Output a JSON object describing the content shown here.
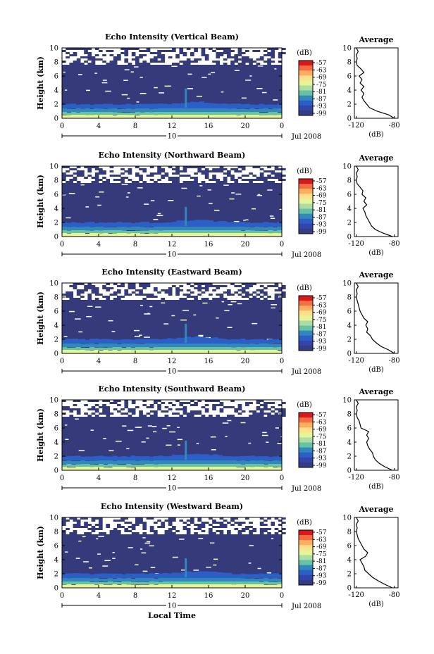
{
  "colorbar": {
    "unit": "(dB)",
    "labels": [
      "-57",
      "-63",
      "-69",
      "-75",
      "-81",
      "-87",
      "-93",
      "-99"
    ],
    "colors": [
      "#d7191c",
      "#f46d43",
      "#fdae61",
      "#fee08b",
      "#e6f598",
      "#abdda4",
      "#66c2a5",
      "#3288bd",
      "#2b5fc6",
      "#3344aa",
      "#343c83"
    ]
  },
  "shared": {
    "ylabel": "Height (km)",
    "x_ticks": [
      "0",
      "4",
      "8",
      "12",
      "16",
      "20",
      "0"
    ],
    "date_marker": "10",
    "date_label": "Jul 2008",
    "xlabel": "Local Time",
    "yticks": [
      "0",
      "2",
      "4",
      "6",
      "8",
      "10"
    ],
    "avg_title": "Average",
    "avg_xlabel": "(dB)",
    "avg_xticks": [
      "-120",
      "-80"
    ],
    "background_color": "#343a7a"
  },
  "chart_data": [
    {
      "type": "heatmap",
      "title": "Echo Intensity (Vertical Beam)",
      "ylabel": "Height (km)",
      "xlim": [
        0,
        24
      ],
      "ylim": [
        0,
        10
      ],
      "avg_profile": {
        "heights": [
          0,
          0.5,
          1,
          1.5,
          2,
          2.5,
          3,
          3.5,
          4,
          4.5,
          5,
          5.5,
          6,
          6.5,
          7,
          7.5,
          8,
          8.5,
          9,
          9.5,
          10
        ],
        "db": [
          -80,
          -86,
          -98,
          -106,
          -109,
          -112,
          -114,
          -112,
          -115,
          -112,
          -116,
          -114,
          -117,
          -112,
          -115,
          -119,
          -120,
          -119,
          -120,
          -118,
          -120
        ]
      }
    },
    {
      "type": "heatmap",
      "title": "Echo Intensity (Northward Beam)",
      "ylabel": "Height (km)",
      "xlim": [
        0,
        24
      ],
      "ylim": [
        0,
        10
      ],
      "avg_profile": {
        "heights": [
          0,
          0.5,
          1,
          1.5,
          2,
          2.5,
          3,
          3.5,
          4,
          4.5,
          5,
          5.5,
          6,
          6.5,
          7,
          7.5,
          8,
          8.5,
          9,
          9.5,
          10
        ],
        "db": [
          -82,
          -92,
          -100,
          -104,
          -106,
          -108,
          -110,
          -111,
          -113,
          -109,
          -112,
          -110,
          -114,
          -113,
          -116,
          -119,
          -120,
          -119,
          -120,
          -118,
          -120
        ]
      }
    },
    {
      "type": "heatmap",
      "title": "Echo Intensity (Eastward Beam)",
      "ylabel": "Height (km)",
      "xlim": [
        0,
        24
      ],
      "ylim": [
        0,
        10
      ],
      "avg_profile": {
        "heights": [
          0,
          0.5,
          1,
          1.5,
          2,
          2.5,
          3,
          3.5,
          4,
          4.5,
          5,
          5.5,
          6,
          6.5,
          7,
          7.5,
          8,
          8.5,
          9,
          9.5,
          10
        ],
        "db": [
          -80,
          -86,
          -94,
          -99,
          -103,
          -105,
          -109,
          -108,
          -110,
          -108,
          -112,
          -114,
          -116,
          -117,
          -118,
          -119,
          -120,
          -119,
          -120,
          -118,
          -120
        ]
      }
    },
    {
      "type": "heatmap",
      "title": "Echo Intensity (Southward Beam)",
      "ylabel": "Height (km)",
      "xlim": [
        0,
        24
      ],
      "ylim": [
        0,
        10
      ],
      "avg_profile": {
        "heights": [
          0,
          0.5,
          1,
          1.5,
          2,
          2.5,
          3,
          3.5,
          4,
          4.5,
          5,
          5.5,
          6,
          6.5,
          7,
          7.5,
          8,
          8.5,
          9,
          9.5,
          10
        ],
        "db": [
          -82,
          -90,
          -96,
          -100,
          -102,
          -103,
          -106,
          -108,
          -109,
          -107,
          -109,
          -107,
          -115,
          -116,
          -117,
          -119,
          -120,
          -119,
          -120,
          -118,
          -120
        ]
      }
    },
    {
      "type": "heatmap",
      "title": "Echo Intensity (Westward Beam)",
      "ylabel": "Height (km)",
      "xlim": [
        0,
        24
      ],
      "ylim": [
        0,
        10
      ],
      "avg_profile": {
        "heights": [
          0,
          0.5,
          1,
          1.5,
          2,
          2.5,
          3,
          3.5,
          4,
          4.5,
          5,
          5.5,
          6,
          6.5,
          7,
          7.5,
          8,
          8.5,
          9,
          9.5,
          10
        ],
        "db": [
          -82,
          -90,
          -97,
          -103,
          -107,
          -111,
          -112,
          -114,
          -116,
          -110,
          -108,
          -112,
          -114,
          -116,
          -118,
          -119,
          -120,
          -119,
          -120,
          -118,
          -120
        ]
      }
    }
  ]
}
